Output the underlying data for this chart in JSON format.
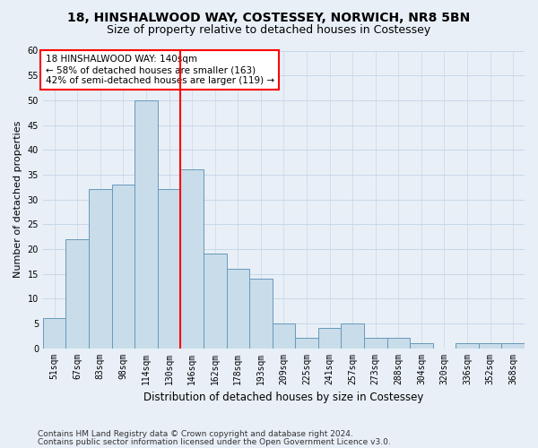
{
  "title": "18, HINSHALWOOD WAY, COSTESSEY, NORWICH, NR8 5BN",
  "subtitle": "Size of property relative to detached houses in Costessey",
  "xlabel": "Distribution of detached houses by size in Costessey",
  "ylabel": "Number of detached properties",
  "bar_labels": [
    "51sqm",
    "67sqm",
    "83sqm",
    "98sqm",
    "114sqm",
    "130sqm",
    "146sqm",
    "162sqm",
    "178sqm",
    "193sqm",
    "209sqm",
    "225sqm",
    "241sqm",
    "257sqm",
    "273sqm",
    "288sqm",
    "304sqm",
    "320sqm",
    "336sqm",
    "352sqm",
    "368sqm"
  ],
  "bar_values": [
    6,
    22,
    32,
    33,
    50,
    32,
    36,
    19,
    16,
    14,
    5,
    2,
    4,
    5,
    2,
    2,
    1,
    0,
    1,
    1,
    1
  ],
  "bar_color": "#c9dcea",
  "bar_edge_color": "#6699bb",
  "ref_line_x": 5.5,
  "ref_line_color": "red",
  "annotation_text": "18 HINSHALWOOD WAY: 140sqm\n← 58% of detached houses are smaller (163)\n42% of semi-detached houses are larger (119) →",
  "annotation_box_color": "#ffffff",
  "annotation_box_edge_color": "red",
  "ylim": [
    0,
    60
  ],
  "yticks": [
    0,
    5,
    10,
    15,
    20,
    25,
    30,
    35,
    40,
    45,
    50,
    55,
    60
  ],
  "grid_color": "#c8d8e8",
  "background_color": "#e8eff7",
  "footer_line1": "Contains HM Land Registry data © Crown copyright and database right 2024.",
  "footer_line2": "Contains public sector information licensed under the Open Government Licence v3.0.",
  "title_fontsize": 10,
  "subtitle_fontsize": 9,
  "xlabel_fontsize": 8.5,
  "ylabel_fontsize": 8,
  "tick_fontsize": 7,
  "annotation_fontsize": 7.5,
  "footer_fontsize": 6.5
}
